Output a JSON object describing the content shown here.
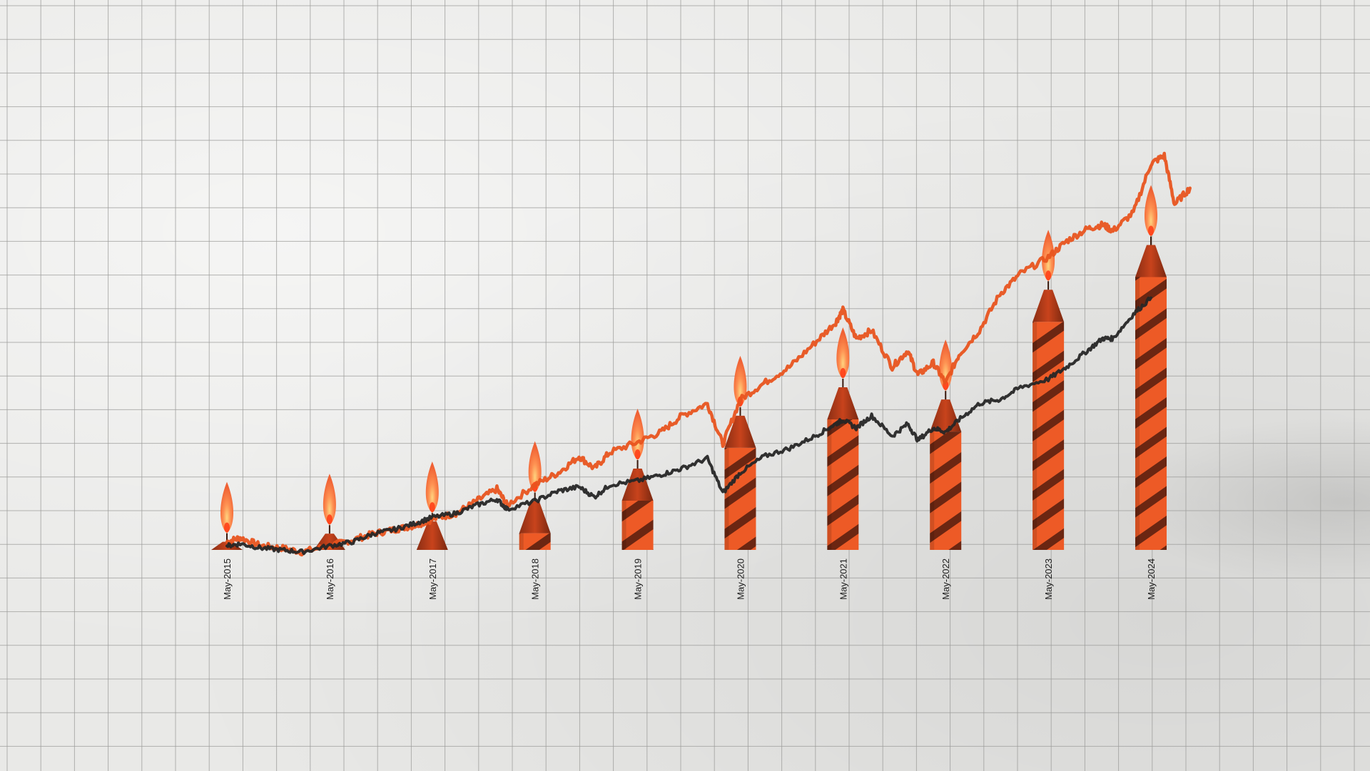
{
  "chart_data": {
    "type": "line",
    "title": "",
    "xlabel": "",
    "ylabel": "",
    "grid": true,
    "legend": "none",
    "x_tick_labels": [
      "May-2015",
      "May-2016",
      "May-2017",
      "May-2018",
      "May-2019",
      "May-2020",
      "May-2021",
      "May-2022",
      "May-2023",
      "May-2024"
    ],
    "ylim": [
      0,
      100
    ],
    "series": [
      {
        "color": "#e8541f",
        "style": "line",
        "values": [
          [
            2015.37,
            2
          ],
          [
            2015.5,
            3
          ],
          [
            2015.7,
            1
          ],
          [
            2015.9,
            0.5
          ],
          [
            2016.1,
            -0.5
          ],
          [
            2016.37,
            1
          ],
          [
            2016.6,
            2.5
          ],
          [
            2016.8,
            4
          ],
          [
            2017.0,
            5
          ],
          [
            2017.2,
            6
          ],
          [
            2017.37,
            7.5
          ],
          [
            2017.6,
            9
          ],
          [
            2017.8,
            12
          ],
          [
            2018.0,
            15
          ],
          [
            2018.1,
            11
          ],
          [
            2018.37,
            16
          ],
          [
            2018.6,
            19
          ],
          [
            2018.8,
            23
          ],
          [
            2018.95,
            20
          ],
          [
            2019.1,
            24
          ],
          [
            2019.37,
            26.5
          ],
          [
            2019.6,
            29
          ],
          [
            2019.8,
            33
          ],
          [
            2020.05,
            36
          ],
          [
            2020.2,
            26
          ],
          [
            2020.37,
            37
          ],
          [
            2020.6,
            41
          ],
          [
            2020.85,
            45
          ],
          [
            2021.1,
            51
          ],
          [
            2021.3,
            56
          ],
          [
            2021.37,
            59
          ],
          [
            2021.5,
            52
          ],
          [
            2021.65,
            54
          ],
          [
            2021.85,
            45
          ],
          [
            2022.0,
            49
          ],
          [
            2022.1,
            43
          ],
          [
            2022.25,
            46
          ],
          [
            2022.37,
            41
          ],
          [
            2022.5,
            48
          ],
          [
            2022.7,
            54
          ],
          [
            2022.9,
            63
          ],
          [
            2023.1,
            68
          ],
          [
            2023.37,
            72
          ],
          [
            2023.55,
            76
          ],
          [
            2023.75,
            79
          ],
          [
            2023.9,
            80
          ],
          [
            2024.0,
            78.5
          ],
          [
            2024.2,
            83
          ],
          [
            2024.37,
            95
          ],
          [
            2024.5,
            97
          ],
          [
            2024.6,
            85
          ],
          [
            2024.75,
            89
          ]
        ]
      },
      {
        "color": "#262626",
        "style": "line",
        "values": [
          [
            2015.37,
            1
          ],
          [
            2015.5,
            1.5
          ],
          [
            2015.7,
            0.5
          ],
          [
            2015.9,
            0
          ],
          [
            2016.1,
            -0.5
          ],
          [
            2016.37,
            1
          ],
          [
            2016.6,
            2
          ],
          [
            2016.8,
            4
          ],
          [
            2017.0,
            5
          ],
          [
            2017.2,
            6.5
          ],
          [
            2017.37,
            8
          ],
          [
            2017.6,
            9
          ],
          [
            2017.8,
            11
          ],
          [
            2018.0,
            12.5
          ],
          [
            2018.1,
            10
          ],
          [
            2018.37,
            12
          ],
          [
            2018.6,
            14.5
          ],
          [
            2018.8,
            15.5
          ],
          [
            2018.95,
            13
          ],
          [
            2019.1,
            16
          ],
          [
            2019.37,
            17
          ],
          [
            2019.6,
            18.5
          ],
          [
            2019.8,
            20
          ],
          [
            2020.05,
            22.5
          ],
          [
            2020.2,
            14
          ],
          [
            2020.37,
            19
          ],
          [
            2020.6,
            23
          ],
          [
            2020.85,
            25
          ],
          [
            2021.1,
            28
          ],
          [
            2021.3,
            31
          ],
          [
            2021.37,
            32
          ],
          [
            2021.5,
            30
          ],
          [
            2021.65,
            33
          ],
          [
            2021.85,
            28
          ],
          [
            2022.0,
            31
          ],
          [
            2022.1,
            27
          ],
          [
            2022.25,
            30
          ],
          [
            2022.37,
            29
          ],
          [
            2022.5,
            32
          ],
          [
            2022.7,
            36
          ],
          [
            2022.9,
            37
          ],
          [
            2023.1,
            40
          ],
          [
            2023.37,
            42
          ],
          [
            2023.55,
            45
          ],
          [
            2023.75,
            49
          ],
          [
            2023.9,
            52
          ],
          [
            2024.0,
            52
          ],
          [
            2024.2,
            58
          ],
          [
            2024.37,
            62
          ]
        ]
      },
      {
        "name": "",
        "color": "#ed5a26",
        "style": "candles",
        "x": [
          2015.37,
          2016.37,
          2017.37,
          2018.37,
          2019.37,
          2020.37,
          2021.37,
          2022.37,
          2023.37,
          2024.37
        ],
        "values": [
          2,
          4,
          7,
          12,
          20,
          33,
          40,
          37,
          64,
          75
        ]
      }
    ]
  }
}
